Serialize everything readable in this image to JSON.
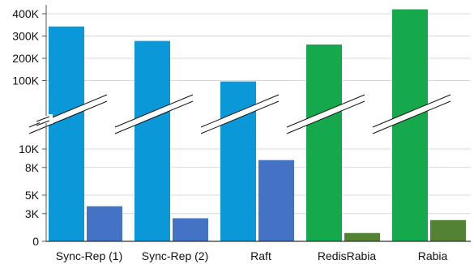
{
  "chart_data": {
    "type": "bar",
    "axis_break": {
      "lower_max": 10000,
      "upper_min": 0
    },
    "categories": [
      "Sync-Rep (1)",
      "Sync-Rep (2)",
      "Raft",
      "RedisRabia",
      "Rabia"
    ],
    "series": [
      {
        "values": [
          343000,
          278000,
          96000,
          262000,
          420000
        ]
      },
      {
        "values": [
          3800,
          2500,
          8800,
          900,
          2300
        ]
      }
    ],
    "bar_colors": [
      [
        "#0a98d8",
        "#4472c4"
      ],
      [
        "#0a98d8",
        "#4472c4"
      ],
      [
        "#0a98d8",
        "#4472c4"
      ],
      [
        "#16a84c",
        "#548235"
      ],
      [
        "#16a84c",
        "#548235"
      ]
    ],
    "yticks_lower": [
      {
        "value": 0,
        "label": "0"
      },
      {
        "value": 3000,
        "label": "3K"
      },
      {
        "value": 5000,
        "label": "5K"
      },
      {
        "value": 8000,
        "label": "8K"
      },
      {
        "value": 10000,
        "label": "10K"
      }
    ],
    "yticks_upper": [
      {
        "value": 100000,
        "label": "100K"
      },
      {
        "value": 200000,
        "label": "200K"
      },
      {
        "value": 300000,
        "label": "300K"
      },
      {
        "value": 400000,
        "label": "400K"
      }
    ],
    "grid": true,
    "title": "",
    "xlabel": "",
    "ylabel": ""
  }
}
